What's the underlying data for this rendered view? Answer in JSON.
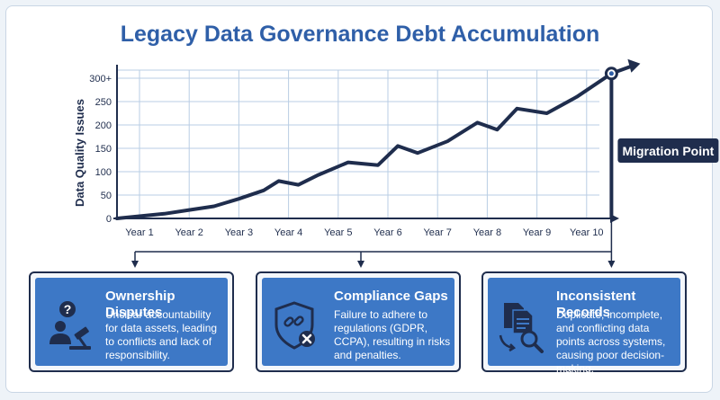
{
  "chart_data": {
    "type": "line",
    "title": "Legacy Data Governance Debt Accumulation",
    "xlabel": "",
    "ylabel": "Data Quality Issues",
    "categories": [
      "Year 1",
      "Year 2",
      "Year 3",
      "Year 4",
      "Year 5",
      "Year 6",
      "Year 7",
      "Year 8",
      "Year 9",
      "Year 10"
    ],
    "yticks": [
      "0",
      "50",
      "100",
      "150",
      "200",
      "250",
      "300+"
    ],
    "ylim": [
      0,
      300
    ],
    "grid": true,
    "series": [
      {
        "x": [
          0,
          0.5,
          1,
          1.5,
          2,
          2.5,
          2.8,
          3.2,
          3.6,
          4.2,
          4.8,
          5.2,
          5.6,
          6.2,
          6.8,
          7.2,
          7.6,
          8.2,
          8.8,
          9.5
        ],
        "y": [
          0,
          10,
          18,
          26,
          42,
          60,
          80,
          72,
          93,
          120,
          114,
          155,
          140,
          165,
          205,
          190,
          235,
          225,
          260,
          310
        ]
      }
    ],
    "annotations": [
      {
        "label": "Migration Point",
        "x": 9.5,
        "y": 310
      }
    ],
    "line_color": "#1f2d4d",
    "grid_color": "#b9cde4"
  },
  "cards": [
    {
      "title": "Ownership Disputes",
      "description": "Unclear accountability for data assets, leading to conflicts and lack of responsibility.",
      "icon": "ownership-disputes-icon"
    },
    {
      "title": "Compliance Gaps",
      "description": "Failure to adhere to regulations (GDPR, CCPA), resulting in risks and penalties.",
      "icon": "compliance-gaps-icon"
    },
    {
      "title": "Inconsistent Records",
      "description": "Duplicate, incomplete, and conflicting data points across systems, causing poor decision-making.",
      "icon": "inconsistent-records-icon"
    }
  ],
  "colors": {
    "title": "#2f5fa8",
    "card_fill": "#3d78c6",
    "card_border": "#1f2d4d",
    "badge_fill": "#1f2d4d"
  }
}
